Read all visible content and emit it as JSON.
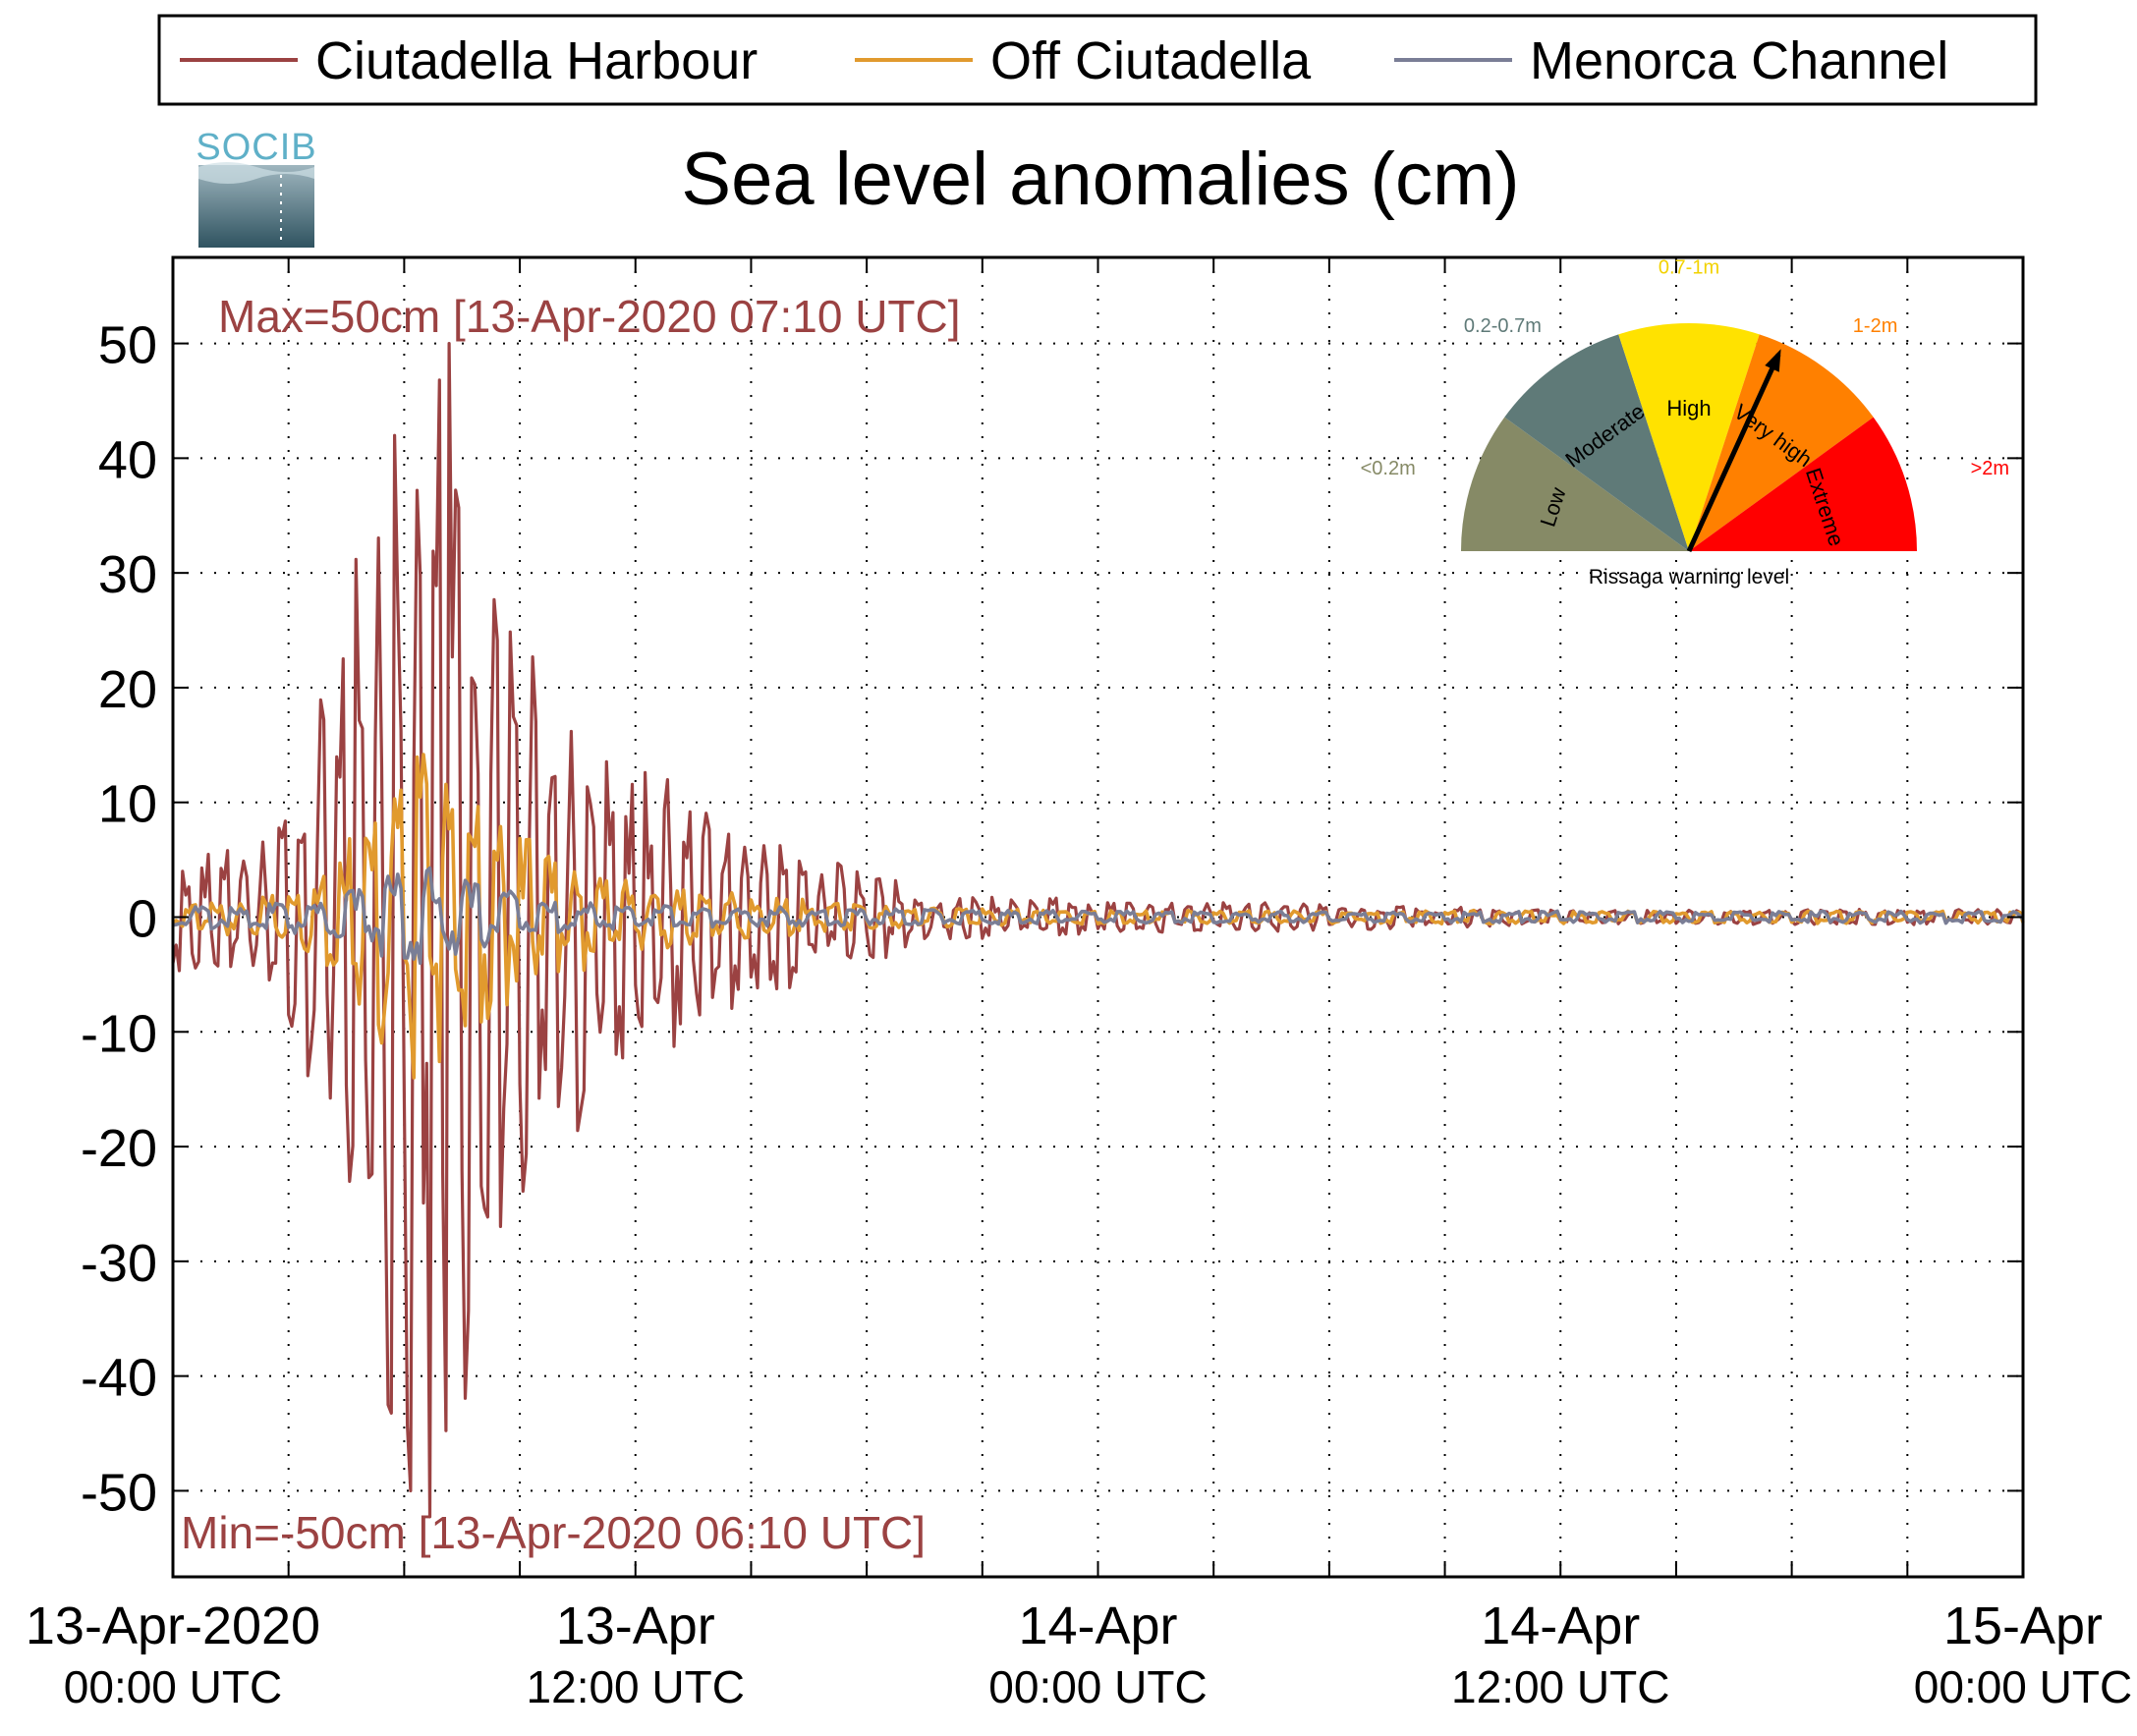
{
  "chart_data": {
    "type": "line",
    "title": "Sea level anomalies (cm)",
    "xlabel": "",
    "ylabel": "",
    "xlim": [
      "13-Apr-2020 00:00 UTC",
      "15-Apr-2020 00:00 UTC"
    ],
    "ylim": [
      -57.5,
      57.5
    ],
    "grid": true,
    "legend_position": "top",
    "y_ticks": [
      50,
      40,
      30,
      20,
      10,
      0,
      -10,
      -20,
      -30,
      -40,
      -50
    ],
    "y_tick_labels": [
      "50",
      "40",
      "30",
      "20",
      "10",
      "0",
      "-10",
      "-20",
      "-30",
      "-40",
      "-50"
    ],
    "x_ticks": [
      {
        "time": "13-Apr-2020 00:00 UTC",
        "line1": "13-Apr-2020",
        "line2": "00:00 UTC"
      },
      {
        "time": "13-Apr-2020 12:00 UTC",
        "line1": "13-Apr",
        "line2": "12:00 UTC"
      },
      {
        "time": "14-Apr-2020 00:00 UTC",
        "line1": "14-Apr",
        "line2": "00:00 UTC"
      },
      {
        "time": "14-Apr-2020 12:00 UTC",
        "line1": "14-Apr",
        "line2": "12:00 UTC"
      },
      {
        "time": "15-Apr-2020 00:00 UTC",
        "line1": "15-Apr",
        "line2": "00:00 UTC"
      }
    ],
    "annotations": {
      "max": "Max=50cm [13-Apr-2020 07:10 UTC]",
      "min": "Min=-50cm [13-Apr-2020 06:10 UTC]"
    },
    "series": [
      {
        "name": "Ciutadella Harbour",
        "color": "#9B4242",
        "envelope_points": [
          [
            "13-Apr-2020 00:00 UTC",
            5
          ],
          [
            "13-Apr-2020 02:00 UTC",
            6
          ],
          [
            "13-Apr-2020 03:00 UTC",
            9
          ],
          [
            "13-Apr-2020 04:00 UTC",
            20
          ],
          [
            "13-Apr-2020 05:00 UTC",
            36
          ],
          [
            "13-Apr-2020 06:10 UTC",
            50
          ],
          [
            "13-Apr-2020 07:10 UTC",
            50
          ],
          [
            "13-Apr-2020 08:00 UTC",
            36
          ],
          [
            "13-Apr-2020 09:00 UTC",
            26
          ],
          [
            "13-Apr-2020 10:00 UTC",
            20
          ],
          [
            "13-Apr-2020 12:00 UTC",
            14
          ],
          [
            "13-Apr-2020 15:00 UTC",
            7
          ],
          [
            "13-Apr-2020 18:00 UTC",
            4
          ],
          [
            "13-Apr-2020 20:00 UTC",
            2
          ],
          [
            "14-Apr-2020 00:00 UTC",
            1.5
          ],
          [
            "14-Apr-2020 06:00 UTC",
            1.2
          ],
          [
            "14-Apr-2020 12:00 UTC",
            0.6
          ],
          [
            "15-Apr-2020 00:00 UTC",
            0.7
          ]
        ],
        "extrema": [
          {
            "time": "13-Apr-2020 07:10 UTC",
            "value": 50
          },
          {
            "time": "13-Apr-2020 06:10 UTC",
            "value": -50
          }
        ]
      },
      {
        "name": "Off Ciutadella",
        "color": "#E19A2E",
        "envelope_points": [
          [
            "13-Apr-2020 00:00 UTC",
            1
          ],
          [
            "13-Apr-2020 03:00 UTC",
            2
          ],
          [
            "13-Apr-2020 04:00 UTC",
            5
          ],
          [
            "13-Apr-2020 05:00 UTC",
            10
          ],
          [
            "13-Apr-2020 06:00 UTC",
            14
          ],
          [
            "13-Apr-2020 07:00 UTC",
            13
          ],
          [
            "13-Apr-2020 08:00 UTC",
            10
          ],
          [
            "13-Apr-2020 10:00 UTC",
            5
          ],
          [
            "13-Apr-2020 12:00 UTC",
            3
          ],
          [
            "13-Apr-2020 18:00 UTC",
            1
          ],
          [
            "14-Apr-2020 00:00 UTC",
            0.6
          ],
          [
            "15-Apr-2020 00:00 UTC",
            0.5
          ]
        ]
      },
      {
        "name": "Menorca Channel",
        "color": "#7A7E96",
        "envelope_points": [
          [
            "13-Apr-2020 00:00 UTC",
            0.8
          ],
          [
            "13-Apr-2020 04:00 UTC",
            1.5
          ],
          [
            "13-Apr-2020 05:00 UTC",
            3
          ],
          [
            "13-Apr-2020 06:00 UTC",
            5
          ],
          [
            "13-Apr-2020 08:00 UTC",
            3
          ],
          [
            "13-Apr-2020 10:00 UTC",
            1.5
          ],
          [
            "13-Apr-2020 12:00 UTC",
            1
          ],
          [
            "14-Apr-2020 00:00 UTC",
            0.5
          ],
          [
            "15-Apr-2020 00:00 UTC",
            0.5
          ]
        ]
      }
    ]
  },
  "logo": {
    "text": "SOCIB"
  },
  "gauge": {
    "caption": "Rissaga warning level",
    "pointer_segment": "Very high",
    "segments": [
      {
        "label": "Low",
        "range": "<0.2m",
        "color": "#868A66",
        "range_color": "#868A66"
      },
      {
        "label": "Moderate",
        "range": "0.2-0.7m",
        "color": "#5F7A78",
        "range_color": "#5F7A78"
      },
      {
        "label": "High",
        "range": "0.7-1m",
        "color": "#FFE200",
        "range_color": "#F2D200"
      },
      {
        "label": "Very high",
        "range": "1-2m",
        "color": "#FF8000",
        "range_color": "#FF8000"
      },
      {
        "label": "Extreme",
        "range": ">2m",
        "color": "#FF0000",
        "range_color": "#FF0000"
      }
    ]
  }
}
